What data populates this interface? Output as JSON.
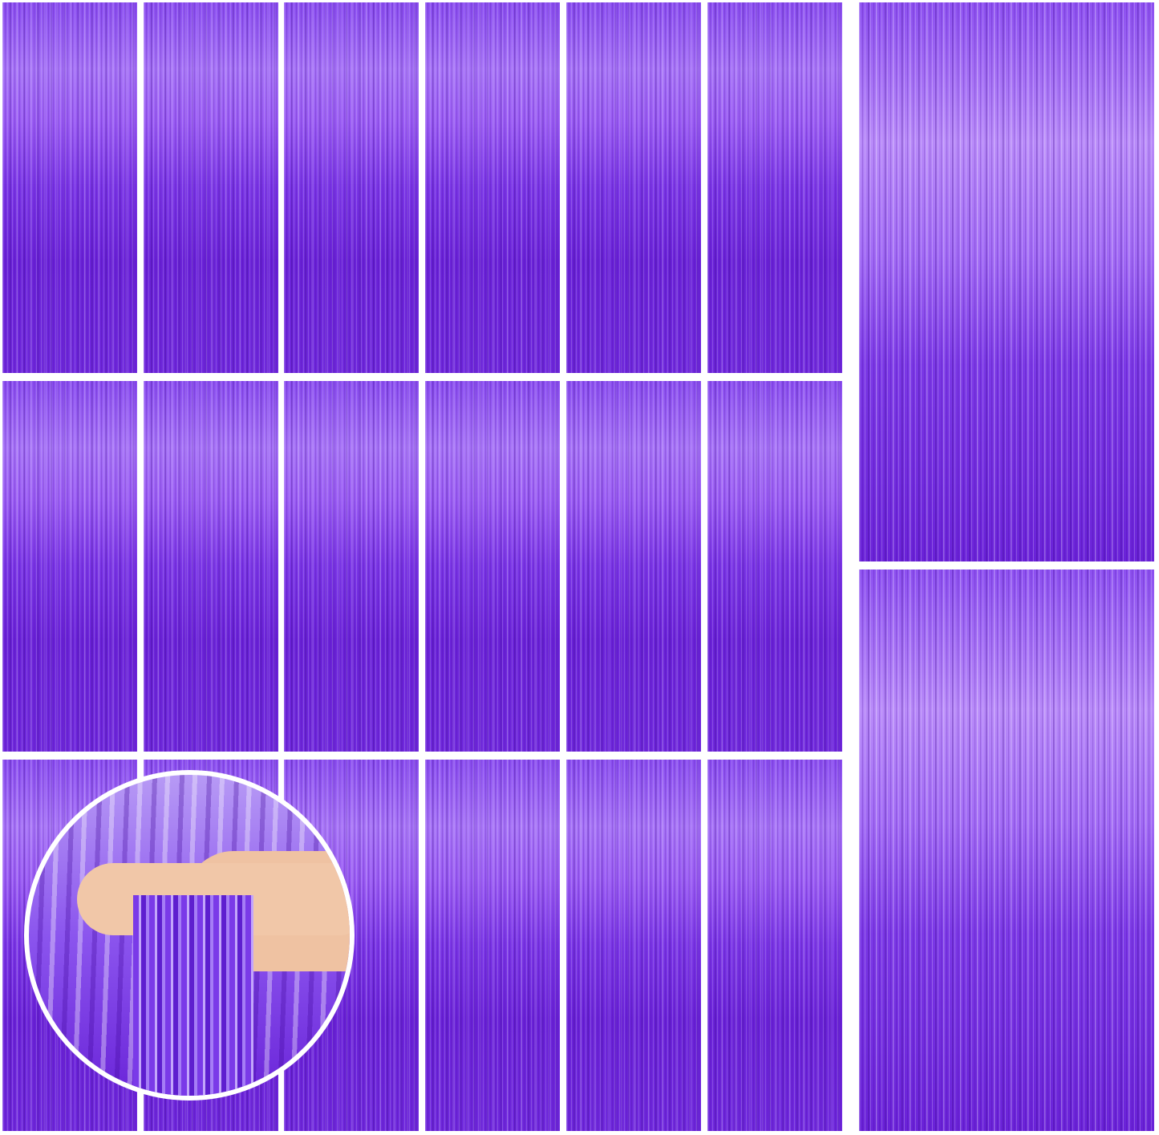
{
  "colors": {
    "background": "#ffffff",
    "fringe_light": "#b88af9",
    "fringe_mid": "#8a4df0",
    "fringe_dark": "#6a22d8",
    "skin": "#f1c7a8"
  },
  "image": {
    "subject": "purple-foil-fringe-curtains"
  }
}
